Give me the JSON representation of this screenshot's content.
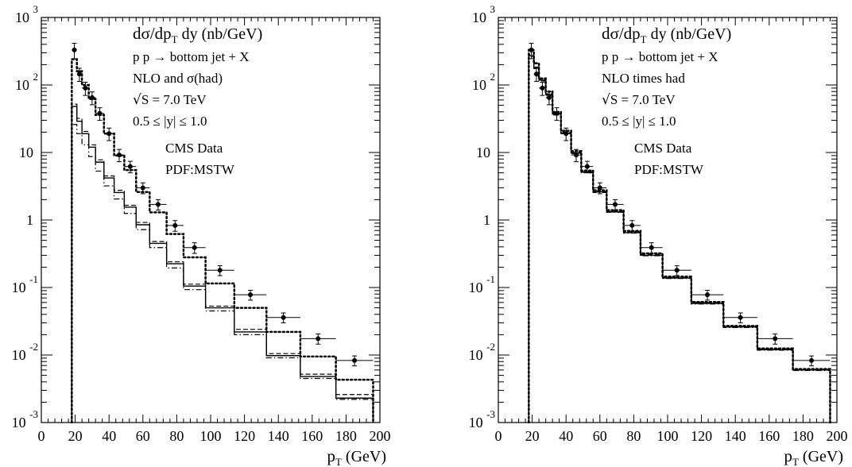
{
  "chart_data": [
    {
      "type": "step",
      "title": "dσ/dp_T dy (nb/GeV)",
      "annotations": [
        "p p → bottom jet + X",
        "NLO and σ(had)",
        "√S = 7.0 TeV",
        "0.5 ≤ |y| ≤ 1.0",
        "CMS Data",
        "PDF:MSTW"
      ],
      "xlabel": "p_T (GeV)",
      "xlim": [
        0,
        200
      ],
      "ylim": [
        0.001,
        1000
      ],
      "yscale": "log",
      "x_ticks": [
        "0",
        "20",
        "40",
        "60",
        "80",
        "100",
        "120",
        "140",
        "160",
        "180",
        "200"
      ],
      "y_ticks": [
        {
          "value": 0.001,
          "base": "10",
          "exp": "-3"
        },
        {
          "value": 0.01,
          "base": "10",
          "exp": "-2"
        },
        {
          "value": 0.1,
          "base": "10",
          "exp": "-1"
        },
        {
          "value": 1,
          "base": "1",
          "exp": ""
        },
        {
          "value": 10,
          "base": "10",
          "exp": ""
        },
        {
          "value": 100,
          "base": "10",
          "exp": "2"
        },
        {
          "value": 1000,
          "base": "10",
          "exp": "3"
        }
      ],
      "bin_edges": [
        18,
        21,
        24,
        28,
        32,
        37,
        43,
        49,
        56,
        64,
        74,
        84,
        97,
        114,
        133,
        153,
        174,
        196
      ],
      "series": [
        {
          "style": "dotted",
          "values": [
            240,
            160,
            100,
            62,
            36,
            19,
            9,
            5.5,
            2.6,
            1.3,
            0.62,
            0.28,
            0.115,
            0.05,
            0.022,
            0.0095,
            0.0043
          ]
        },
        {
          "style": "solid",
          "values": [
            48,
            29,
            19,
            12,
            7.2,
            4.2,
            2.55,
            1.55,
            0.85,
            0.45,
            0.225,
            0.105,
            0.05,
            0.022,
            0.0098,
            0.0048,
            0.0023
          ]
        },
        {
          "style": "dashed",
          "values": [
            52,
            32,
            20.5,
            13,
            7.8,
            4.5,
            2.75,
            1.65,
            0.92,
            0.48,
            0.24,
            0.112,
            0.053,
            0.024,
            0.0105,
            0.0052,
            0.0026
          ]
        },
        {
          "style": "dashdot",
          "values": [
            26,
            19,
            13,
            8.7,
            5.3,
            3.2,
            2.05,
            1.25,
            0.72,
            0.39,
            0.195,
            0.093,
            0.045,
            0.02,
            0.0091,
            0.0045,
            0.0022
          ]
        }
      ],
      "data_points": {
        "name": "CMS Data",
        "x": [
          19.5,
          22.5,
          26,
          30,
          34.5,
          40,
          46,
          52.5,
          60,
          69,
          79,
          90.5,
          105.5,
          123.5,
          143,
          163.5,
          185
        ],
        "y": [
          330,
          145,
          90,
          65,
          38,
          19,
          9.2,
          6.2,
          3.0,
          1.7,
          0.83,
          0.39,
          0.18,
          0.078,
          0.036,
          0.0175,
          0.0083
        ],
        "y_err": [
          85,
          32,
          20,
          14,
          8,
          4,
          1.9,
          1.2,
          0.55,
          0.3,
          0.15,
          0.07,
          0.03,
          0.013,
          0.006,
          0.003,
          0.0014
        ],
        "x_low": [
          18,
          21,
          24,
          28,
          32,
          37,
          43,
          49,
          56,
          64,
          74,
          84,
          97,
          114,
          133,
          153,
          174
        ],
        "x_high": [
          21,
          24,
          28,
          32,
          37,
          43,
          49,
          56,
          64,
          74,
          84,
          97,
          114,
          133,
          153,
          174,
          196
        ]
      }
    },
    {
      "type": "step",
      "title": "dσ/dp_T dy (nb/GeV)",
      "annotations": [
        "p p → bottom jet + X",
        "NLO times had",
        "√S = 7.0 TeV",
        "0.5 ≤ |y| ≤ 1.0",
        "CMS Data",
        "PDF:MSTW"
      ],
      "xlabel": "p_T (GeV)",
      "xlim": [
        0,
        200
      ],
      "ylim": [
        0.001,
        1000
      ],
      "yscale": "log",
      "x_ticks": [
        "0",
        "20",
        "40",
        "60",
        "80",
        "100",
        "120",
        "140",
        "160",
        "180",
        "200"
      ],
      "y_ticks": [
        {
          "value": 0.001,
          "base": "10",
          "exp": "-3"
        },
        {
          "value": 0.01,
          "base": "10",
          "exp": "-2"
        },
        {
          "value": 0.1,
          "base": "10",
          "exp": "-1"
        },
        {
          "value": 1,
          "base": "1",
          "exp": ""
        },
        {
          "value": 10,
          "base": "10",
          "exp": ""
        },
        {
          "value": 100,
          "base": "10",
          "exp": "2"
        },
        {
          "value": 1000,
          "base": "10",
          "exp": "3"
        }
      ],
      "bin_edges": [
        18,
        21,
        24,
        28,
        32,
        37,
        43,
        49,
        56,
        64,
        74,
        84,
        97,
        114,
        133,
        153,
        174,
        196
      ],
      "series": [
        {
          "style": "dotted",
          "values": [
            330,
            210,
            125,
            80,
            40,
            21,
            10.5,
            5.4,
            2.75,
            1.4,
            0.69,
            0.32,
            0.145,
            0.061,
            0.027,
            0.0125,
            0.0062
          ]
        },
        {
          "style": "solid",
          "values": [
            270,
            180,
            118,
            72,
            37,
            19.5,
            9.8,
            5.1,
            2.6,
            1.32,
            0.65,
            0.3,
            0.138,
            0.058,
            0.026,
            0.012,
            0.006
          ]
        },
        {
          "style": "dashed",
          "values": [
            280,
            185,
            121,
            74,
            38,
            20,
            10,
            5.2,
            2.65,
            1.35,
            0.67,
            0.31,
            0.141,
            0.06,
            0.0265,
            0.0123,
            0.0061
          ]
        },
        {
          "style": "dashdot",
          "values": [
            265,
            175,
            115,
            70,
            36,
            19,
            9.6,
            5.0,
            2.55,
            1.3,
            0.64,
            0.295,
            0.136,
            0.057,
            0.0255,
            0.0118,
            0.0059
          ]
        }
      ],
      "data_points": {
        "name": "CMS Data",
        "x": [
          19.5,
          22.5,
          26,
          30,
          34.5,
          40,
          46,
          52.5,
          60,
          69,
          79,
          90.5,
          105.5,
          123.5,
          143,
          163.5,
          185
        ],
        "y": [
          330,
          145,
          90,
          65,
          38,
          19,
          9.2,
          6.2,
          3.0,
          1.7,
          0.83,
          0.39,
          0.18,
          0.078,
          0.036,
          0.0175,
          0.0083
        ],
        "y_err": [
          85,
          32,
          20,
          14,
          8,
          4,
          1.9,
          1.2,
          0.55,
          0.3,
          0.15,
          0.07,
          0.03,
          0.013,
          0.006,
          0.003,
          0.0014
        ],
        "x_low": [
          18,
          21,
          24,
          28,
          32,
          37,
          43,
          49,
          56,
          64,
          74,
          84,
          97,
          114,
          133,
          153,
          174
        ],
        "x_high": [
          21,
          24,
          28,
          32,
          37,
          43,
          49,
          56,
          64,
          74,
          84,
          97,
          114,
          133,
          153,
          174,
          196
        ]
      }
    }
  ]
}
